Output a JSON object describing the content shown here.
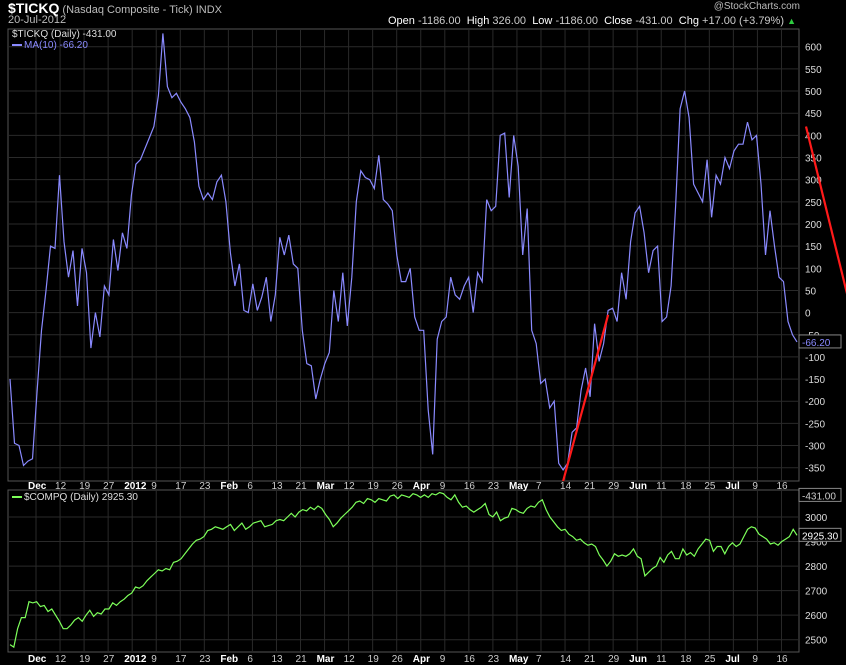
{
  "header": {
    "symbol": "$TICKQ",
    "name": "(Nasdaq Composite - Tick)",
    "exchange": "INDX",
    "date": "20-Jul-2012",
    "watermark": "@StockCharts.com",
    "open_label": "Open",
    "open": "-1186.00",
    "high_label": "High",
    "high": "326.00",
    "low_label": "Low",
    "low": "-1186.00",
    "close_label": "Close",
    "close": "-431.00",
    "chg_label": "Chg",
    "chg": "+17.00 (+3.79%)",
    "chg_arrow": "▲"
  },
  "chart_data": [
    {
      "type": "line",
      "legend_title": "$TICKQ (Daily) -431.00",
      "legend_ma": "MA(10) -66.20",
      "last_value_label": "-66.20",
      "color": "#8a8aff",
      "ylim": [
        -380,
        640
      ],
      "yticks": [
        600,
        550,
        500,
        450,
        400,
        350,
        300,
        250,
        200,
        150,
        100,
        50,
        0,
        -50,
        -100,
        -150,
        -200,
        -250,
        -300,
        -350
      ],
      "xticks": [
        "Dec",
        "12",
        "19",
        "27",
        "2012",
        "9",
        "17",
        "23",
        "Feb",
        "6",
        "13",
        "21",
        "Mar",
        "12",
        "19",
        "26",
        "Apr",
        "9",
        "16",
        "23",
        "May",
        "7",
        "14",
        "21",
        "29",
        "Jun",
        "11",
        "18",
        "25",
        "Jul",
        "9",
        "16"
      ],
      "values": [
        -150,
        -295,
        -300,
        -345,
        -335,
        -330,
        -180,
        -40,
        50,
        150,
        145,
        310,
        160,
        80,
        140,
        15,
        145,
        90,
        -80,
        0,
        -55,
        60,
        40,
        165,
        95,
        180,
        145,
        265,
        335,
        345,
        370,
        395,
        420,
        490,
        630,
        510,
        485,
        495,
        475,
        460,
        440,
        385,
        285,
        255,
        270,
        255,
        295,
        310,
        250,
        135,
        60,
        110,
        5,
        0,
        65,
        5,
        35,
        80,
        -20,
        40,
        170,
        130,
        175,
        110,
        100,
        -40,
        -115,
        -120,
        -195,
        -150,
        -115,
        -90,
        50,
        -20,
        90,
        -30,
        80,
        250,
        320,
        305,
        300,
        280,
        355,
        255,
        245,
        230,
        130,
        70,
        70,
        100,
        -10,
        -40,
        -40,
        -220,
        -320,
        -60,
        -20,
        -10,
        80,
        40,
        30,
        60,
        80,
        0,
        90,
        70,
        255,
        230,
        240,
        400,
        405,
        260,
        400,
        330,
        130,
        235,
        -40,
        -70,
        -160,
        -150,
        -215,
        -200,
        -340,
        -355,
        -340,
        -270,
        -260,
        -175,
        -125,
        -190,
        -25,
        -110,
        -70,
        5,
        10,
        -20,
        90,
        30,
        160,
        225,
        240,
        180,
        90,
        140,
        150,
        -20,
        -10,
        60,
        240,
        460,
        500,
        440,
        290,
        270,
        250,
        345,
        215,
        310,
        290,
        350,
        325,
        365,
        380,
        380,
        430,
        390,
        400,
        290,
        130,
        230,
        150,
        80,
        70,
        -20,
        -50,
        -66.2
      ],
      "trendlines": [
        {
          "from": {
            "index": 123,
            "value": -380
          },
          "to": {
            "index": 133,
            "value": -5
          },
          "color": "#ff1a1a"
        },
        {
          "from": {
            "index": 177,
            "value": 420
          },
          "to": {
            "index": 188,
            "value": -35
          },
          "color": "#ff1a1a"
        }
      ]
    },
    {
      "type": "line",
      "legend_title": "$COMPQ (Daily) 2925.30",
      "last_value_label": "2925.30",
      "overlay_label": "-431.00",
      "color": "#7dff5a",
      "ylim": [
        2450,
        3110
      ],
      "yticks": [
        3000,
        2900,
        2800,
        2700,
        2600,
        2500
      ],
      "xticks": [
        "Dec",
        "12",
        "19",
        "27",
        "2012",
        "9",
        "17",
        "23",
        "Feb",
        "6",
        "13",
        "21",
        "Mar",
        "12",
        "19",
        "26",
        "Apr",
        "9",
        "16",
        "23",
        "May",
        "7",
        "14",
        "21",
        "29",
        "Jun",
        "11",
        "18",
        "25",
        "Jul",
        "9",
        "16"
      ],
      "values": [
        2480,
        2470,
        2545,
        2590,
        2590,
        2655,
        2650,
        2655,
        2635,
        2640,
        2615,
        2625,
        2600,
        2575,
        2545,
        2545,
        2560,
        2580,
        2590,
        2575,
        2600,
        2620,
        2595,
        2610,
        2605,
        2625,
        2625,
        2650,
        2640,
        2655,
        2665,
        2680,
        2690,
        2715,
        2710,
        2720,
        2740,
        2755,
        2770,
        2785,
        2780,
        2790,
        2785,
        2815,
        2820,
        2830,
        2850,
        2870,
        2890,
        2905,
        2910,
        2920,
        2945,
        2950,
        2960,
        2955,
        2950,
        2960,
        2970,
        2945,
        2960,
        2975,
        2950,
        2960,
        2975,
        2980,
        2985,
        2960,
        2965,
        2970,
        2985,
        2990,
        2985,
        3000,
        3015,
        3000,
        3020,
        3030,
        3025,
        3040,
        3030,
        3045,
        3035,
        3010,
        2990,
        2960,
        2975,
        2995,
        3010,
        3025,
        3040,
        3060,
        3065,
        3055,
        3075,
        3070,
        3060,
        3075,
        3070,
        3065,
        3085,
        3090,
        3075,
        3090,
        3085,
        3080,
        3095,
        3090,
        3080,
        3090,
        3080,
        3095,
        3090,
        3100,
        3095,
        3080,
        3070,
        3090,
        3060,
        3040,
        3045,
        3030,
        3020,
        3030,
        3040,
        3055,
        3010,
        3000,
        3020,
        2985,
        2995,
        3000,
        3035,
        3030,
        3020,
        3015,
        3035,
        3045,
        3040,
        3060,
        3070,
        3030,
        3000,
        2980,
        2960,
        2945,
        2950,
        2930,
        2920,
        2905,
        2910,
        2895,
        2885,
        2890,
        2880,
        2845,
        2825,
        2800,
        2820,
        2850,
        2840,
        2845,
        2840,
        2850,
        2870,
        2840,
        2830,
        2760,
        2775,
        2790,
        2800,
        2835,
        2815,
        2845,
        2860,
        2830,
        2830,
        2870,
        2845,
        2855,
        2840,
        2870,
        2890,
        2910,
        2905,
        2860,
        2880,
        2880,
        2850,
        2880,
        2895,
        2880,
        2890,
        2920,
        2950,
        2960,
        2955,
        2930,
        2920,
        2910,
        2890,
        2895,
        2885,
        2900,
        2910,
        2920,
        2950,
        2925.3
      ]
    }
  ]
}
